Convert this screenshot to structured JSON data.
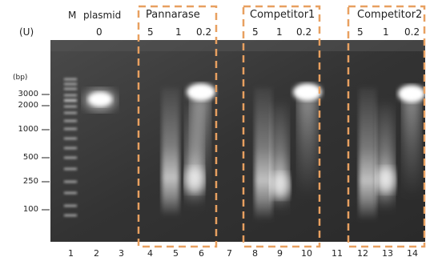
{
  "header": {
    "unit_label": "(U)",
    "marker_label": "M",
    "plasmid_label": "plasmid",
    "plasmid_amount": "0"
  },
  "groups": [
    {
      "name": "Pannarase",
      "amounts": [
        "5",
        "1",
        "0.2"
      ]
    },
    {
      "name": "Competitor1",
      "amounts": [
        "5",
        "1",
        "0.2"
      ]
    },
    {
      "name": "Competitor2",
      "amounts": [
        "5",
        "1",
        "0.2"
      ]
    }
  ],
  "bp_unit": "(bp)",
  "marker_sizes": [
    "3000",
    "2000",
    "1000",
    "500",
    "250",
    "100"
  ],
  "lanes": [
    "1",
    "2",
    "3",
    "4",
    "5",
    "6",
    "7",
    "8",
    "9",
    "10",
    "11",
    "12",
    "13",
    "14"
  ],
  "colors": {
    "dashed_box": "#E8A060",
    "gel": "#3a3a3a",
    "band": "#ffffff"
  }
}
